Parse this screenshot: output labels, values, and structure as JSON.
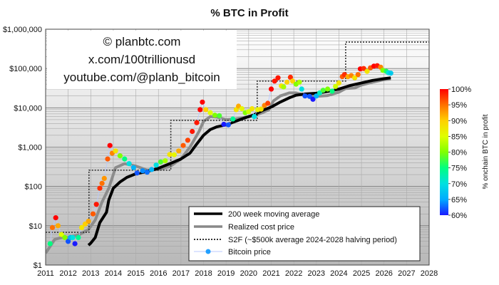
{
  "chart_data": {
    "type": "scatter",
    "title": "% BTC in Profit",
    "y_scale": "log",
    "ylim": [
      1,
      1000000
    ],
    "xlim": [
      2011,
      2028
    ],
    "x_tick_labels": [
      "2011",
      "2012",
      "2013",
      "2014",
      "2015",
      "2016",
      "2017",
      "2018",
      "2019",
      "2020",
      "2021",
      "2022",
      "2023",
      "2024",
      "2025",
      "2026",
      "2027",
      "2028"
    ],
    "y_tick_labels": [
      {
        "value": 1,
        "label": "$1"
      },
      {
        "value": 10,
        "label": "$10"
      },
      {
        "value": 100,
        "label": "$100"
      },
      {
        "value": 1000,
        "label": "$1,000"
      },
      {
        "value": 10000,
        "label": "$10,000"
      },
      {
        "value": 100000,
        "label": "$100,000"
      },
      {
        "value": 1000000,
        "label": "$1,000,000"
      }
    ],
    "colorbar": {
      "label": "% onchain BTC in profit",
      "min": 60,
      "max": 100,
      "tick_labels": [
        {
          "value": 100,
          "label": "100%"
        },
        {
          "value": 95,
          "label": "95%"
        },
        {
          "value": 90,
          "label": "90%"
        },
        {
          "value": 85,
          "label": "85%"
        },
        {
          "value": 80,
          "label": "80%"
        },
        {
          "value": 75,
          "label": "75%"
        },
        {
          "value": 70,
          "label": "70%"
        },
        {
          "value": 65,
          "label": "65%"
        },
        {
          "value": 60,
          "label": "60%"
        }
      ],
      "colors": [
        "#1a1aff",
        "#00aaff",
        "#00e0e0",
        "#00ff80",
        "#80ff00",
        "#e0ff00",
        "#ffd000",
        "#ff7000",
        "#ff0000"
      ]
    },
    "watermark": [
      "© planbtc.com",
      "x.com/100trillionusd",
      "youtube.com/@planb_bitcoin"
    ],
    "legend_position": "bottom-right",
    "series": [
      {
        "name": "200 week moving average",
        "style": "line-black-thick",
        "points": [
          [
            2012.9,
            3.2
          ],
          [
            2013.0,
            3.6
          ],
          [
            2013.2,
            5
          ],
          [
            2013.4,
            12
          ],
          [
            2013.7,
            22
          ],
          [
            2013.8,
            45
          ],
          [
            2014.0,
            90
          ],
          [
            2014.3,
            130
          ],
          [
            2014.6,
            170
          ],
          [
            2015.0,
            210
          ],
          [
            2015.5,
            240
          ],
          [
            2016.0,
            290
          ],
          [
            2016.3,
            340
          ],
          [
            2016.6,
            400
          ],
          [
            2017.0,
            500
          ],
          [
            2017.4,
            700
          ],
          [
            2017.7,
            1200
          ],
          [
            2018.0,
            2000
          ],
          [
            2018.3,
            2800
          ],
          [
            2018.6,
            3300
          ],
          [
            2019.0,
            3700
          ],
          [
            2019.4,
            4500
          ],
          [
            2019.8,
            5500
          ],
          [
            2020.2,
            6500
          ],
          [
            2020.6,
            8500
          ],
          [
            2021.0,
            10500
          ],
          [
            2021.4,
            14000
          ],
          [
            2021.8,
            18000
          ],
          [
            2022.1,
            21000
          ],
          [
            2022.5,
            22500
          ],
          [
            2023.0,
            23500
          ],
          [
            2023.5,
            26000
          ],
          [
            2024.0,
            30000
          ],
          [
            2024.5,
            37000
          ],
          [
            2025.0,
            43000
          ],
          [
            2025.5,
            50000
          ],
          [
            2026.0,
            55000
          ],
          [
            2026.3,
            58000
          ]
        ]
      },
      {
        "name": "Realized cost price",
        "style": "line-gray-thick",
        "points": [
          [
            2011.0,
            2
          ],
          [
            2011.4,
            4.5
          ],
          [
            2011.7,
            5
          ],
          [
            2012.0,
            5
          ],
          [
            2012.5,
            6
          ],
          [
            2012.9,
            8
          ],
          [
            2013.2,
            14
          ],
          [
            2013.5,
            40
          ],
          [
            2013.8,
            90
          ],
          [
            2014.1,
            300
          ],
          [
            2014.5,
            380
          ],
          [
            2015.0,
            330
          ],
          [
            2015.5,
            260
          ],
          [
            2016.0,
            270
          ],
          [
            2016.5,
            320
          ],
          [
            2017.0,
            500
          ],
          [
            2017.4,
            1000
          ],
          [
            2017.8,
            2500
          ],
          [
            2018.0,
            4500
          ],
          [
            2018.3,
            6000
          ],
          [
            2018.6,
            5800
          ],
          [
            2019.0,
            5000
          ],
          [
            2019.4,
            5200
          ],
          [
            2019.8,
            5700
          ],
          [
            2020.2,
            6200
          ],
          [
            2020.6,
            7500
          ],
          [
            2020.9,
            9000
          ],
          [
            2021.1,
            15000
          ],
          [
            2021.4,
            20000
          ],
          [
            2021.8,
            24000
          ],
          [
            2022.1,
            24000
          ],
          [
            2022.5,
            21000
          ],
          [
            2023.0,
            19500
          ],
          [
            2023.5,
            20500
          ],
          [
            2024.0,
            25000
          ],
          [
            2024.3,
            31000
          ],
          [
            2024.7,
            32000
          ],
          [
            2025.0,
            38000
          ],
          [
            2025.5,
            45000
          ],
          [
            2026.0,
            52000
          ],
          [
            2026.3,
            54000
          ]
        ]
      },
      {
        "name": "S2F (~$500k average 2024-2028 halving period)",
        "style": "line-dotted-step",
        "points": [
          [
            2011.0,
            6.8
          ],
          [
            2012.92,
            6.8
          ],
          [
            2012.92,
            260
          ],
          [
            2016.55,
            260
          ],
          [
            2016.55,
            4800
          ],
          [
            2020.38,
            4800
          ],
          [
            2020.38,
            48000
          ],
          [
            2024.3,
            48000
          ],
          [
            2024.3,
            470000
          ],
          [
            2028.0,
            470000
          ]
        ]
      },
      {
        "name": "Bitcoin price",
        "style": "line-light-with-dots",
        "points": [
          [
            2011.2,
            3.5,
            75
          ],
          [
            2011.3,
            9,
            95
          ],
          [
            2011.45,
            16,
            100
          ],
          [
            2011.55,
            10,
            92
          ],
          [
            2011.7,
            6,
            85
          ],
          [
            2011.85,
            5,
            80
          ],
          [
            2012.0,
            4,
            62
          ],
          [
            2012.1,
            5,
            66
          ],
          [
            2012.2,
            5,
            70
          ],
          [
            2012.3,
            3.5,
            60
          ],
          [
            2012.45,
            5,
            74
          ],
          [
            2012.6,
            9,
            88
          ],
          [
            2012.75,
            11,
            90
          ],
          [
            2012.9,
            13,
            92
          ],
          [
            2013.1,
            20,
            96
          ],
          [
            2013.25,
            35,
            99
          ],
          [
            2013.4,
            90,
            98
          ],
          [
            2013.5,
            120,
            95
          ],
          [
            2013.6,
            160,
            93
          ],
          [
            2013.75,
            500,
            96
          ],
          [
            2013.85,
            1100,
            100
          ],
          [
            2013.95,
            700,
            94
          ],
          [
            2014.1,
            800,
            88
          ],
          [
            2014.3,
            600,
            80
          ],
          [
            2014.5,
            500,
            75
          ],
          [
            2014.7,
            380,
            70
          ],
          [
            2014.9,
            300,
            66
          ],
          [
            2015.05,
            220,
            62
          ],
          [
            2015.3,
            250,
            64
          ],
          [
            2015.5,
            230,
            63
          ],
          [
            2015.7,
            270,
            66
          ],
          [
            2015.9,
            350,
            70
          ],
          [
            2016.1,
            420,
            78
          ],
          [
            2016.3,
            450,
            82
          ],
          [
            2016.5,
            650,
            88
          ],
          [
            2016.7,
            640,
            86
          ],
          [
            2016.9,
            800,
            92
          ],
          [
            2017.1,
            1100,
            96
          ],
          [
            2017.3,
            1500,
            97
          ],
          [
            2017.5,
            2500,
            99
          ],
          [
            2017.7,
            4200,
            99
          ],
          [
            2017.85,
            9000,
            100
          ],
          [
            2017.95,
            14000,
            100
          ],
          [
            2018.1,
            9000,
            90
          ],
          [
            2018.3,
            7500,
            85
          ],
          [
            2018.5,
            6500,
            80
          ],
          [
            2018.7,
            6300,
            78
          ],
          [
            2018.9,
            3800,
            60
          ],
          [
            2019.1,
            3700,
            62
          ],
          [
            2019.3,
            5200,
            74
          ],
          [
            2019.45,
            9000,
            88
          ],
          [
            2019.55,
            11000,
            92
          ],
          [
            2019.7,
            9500,
            86
          ],
          [
            2019.85,
            7500,
            80
          ],
          [
            2020.0,
            8000,
            84
          ],
          [
            2020.15,
            9500,
            88
          ],
          [
            2020.25,
            6000,
            70
          ],
          [
            2020.4,
            9000,
            86
          ],
          [
            2020.55,
            9300,
            88
          ],
          [
            2020.7,
            11500,
            94
          ],
          [
            2020.85,
            13000,
            97
          ],
          [
            2021.0,
            30000,
            100
          ],
          [
            2021.15,
            48000,
            99
          ],
          [
            2021.3,
            58000,
            99
          ],
          [
            2021.45,
            36000,
            88
          ],
          [
            2021.55,
            34000,
            82
          ],
          [
            2021.7,
            45000,
            90
          ],
          [
            2021.85,
            60000,
            98
          ],
          [
            2021.95,
            48000,
            90
          ],
          [
            2022.1,
            40000,
            80
          ],
          [
            2022.25,
            45000,
            82
          ],
          [
            2022.35,
            30000,
            70
          ],
          [
            2022.5,
            20000,
            62
          ],
          [
            2022.7,
            19500,
            62
          ],
          [
            2022.85,
            16500,
            60
          ],
          [
            2023.0,
            20000,
            66
          ],
          [
            2023.15,
            24000,
            72
          ],
          [
            2023.3,
            28000,
            78
          ],
          [
            2023.5,
            30000,
            80
          ],
          [
            2023.7,
            26500,
            75
          ],
          [
            2023.85,
            35000,
            84
          ],
          [
            2024.0,
            43000,
            88
          ],
          [
            2024.15,
            62000,
            96
          ],
          [
            2024.25,
            70000,
            98
          ],
          [
            2024.4,
            62000,
            92
          ],
          [
            2024.55,
            66000,
            94
          ],
          [
            2024.7,
            58000,
            88
          ],
          [
            2024.85,
            70000,
            95
          ],
          [
            2024.95,
            98000,
            100
          ],
          [
            2025.1,
            100000,
            98
          ],
          [
            2025.25,
            85000,
            88
          ],
          [
            2025.4,
            104000,
            96
          ],
          [
            2025.55,
            115000,
            100
          ],
          [
            2025.7,
            118000,
            99
          ],
          [
            2025.85,
            108000,
            94
          ],
          [
            2025.95,
            90000,
            80
          ],
          [
            2026.1,
            85000,
            76
          ],
          [
            2026.2,
            78000,
            70
          ],
          [
            2026.3,
            76000,
            68
          ]
        ]
      }
    ]
  }
}
